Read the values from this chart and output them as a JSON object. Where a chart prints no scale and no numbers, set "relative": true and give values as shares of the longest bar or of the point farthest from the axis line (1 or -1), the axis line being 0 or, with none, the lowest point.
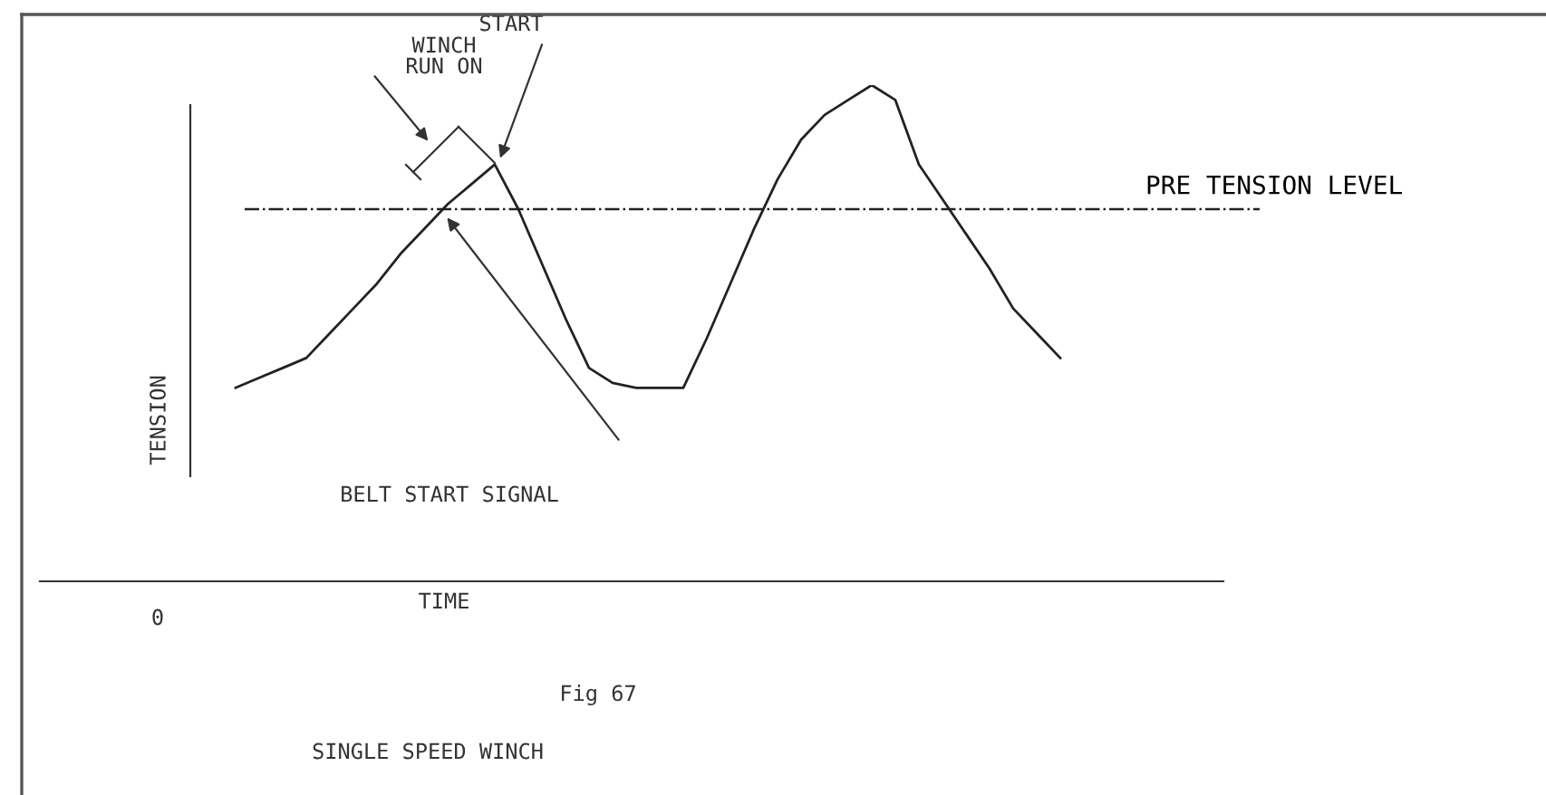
{
  "chart_data": {
    "type": "line",
    "relative": true,
    "xlabel": "TIME",
    "ylabel": "TENSION",
    "categories": [
      null,
      null,
      null,
      null,
      null,
      null,
      null,
      null,
      null,
      null,
      null,
      null,
      null,
      null,
      null,
      null,
      null,
      null,
      null,
      null,
      null,
      null,
      null,
      null,
      null,
      null,
      null,
      null,
      null,
      null,
      null,
      null,
      null,
      null,
      null,
      null
    ],
    "series": [
      {
        "color": "#222222",
        "values": [
          0.39,
          0.41,
          0.43,
          0.45,
          0.5,
          0.55,
          0.6,
          0.66,
          0.71,
          0.76,
          0.8,
          0.84,
          0.75,
          0.64,
          0.53,
          0.43,
          0.4,
          0.39,
          0.39,
          0.39,
          0.49,
          0.6,
          0.71,
          0.81,
          0.89,
          0.94,
          0.97,
          1.0,
          0.97,
          0.84,
          0.77,
          0.7,
          0.63,
          0.55,
          0.5,
          0.45
        ]
      }
    ],
    "ref_lines": [
      {
        "axis": "y",
        "value": 0.75,
        "label": "PRE TENSION LEVEL",
        "line_style": "dashdot",
        "color": "#222222"
      }
    ],
    "annotations": [
      "WINCH\nRUN ON",
      "START",
      "BELT START SIGNAL",
      "0",
      "Fig 67",
      "SINGLE SPEED WINCH"
    ],
    "marker": "none",
    "line_style": "solid"
  }
}
